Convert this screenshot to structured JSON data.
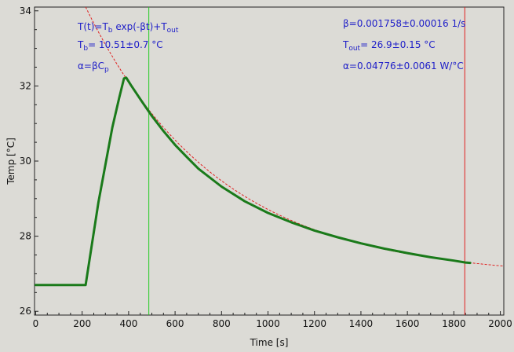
{
  "chart_data": {
    "type": "line",
    "xlabel": "Time [s]",
    "ylabel": "Temp [°C]",
    "xlim": [
      -5,
      2015
    ],
    "ylim": [
      25.9,
      34.1
    ],
    "x_ticks": [
      0,
      200,
      400,
      600,
      800,
      1000,
      1200,
      1400,
      1600,
      1800,
      2000
    ],
    "y_ticks": [
      26,
      28,
      30,
      32,
      34
    ],
    "grid": false,
    "colors": {
      "background": "#dcdbd6",
      "data": "#1a7a1a",
      "fit": "#e02020",
      "cursor_start": "#22cc22",
      "cursor_end": "#e02020",
      "annotation": "#2020c8"
    },
    "series": [
      {
        "style": "data",
        "points": [
          [
            0,
            26.7
          ],
          [
            100,
            26.7
          ],
          [
            210,
            26.7
          ],
          [
            215,
            26.7
          ],
          [
            240,
            27.7
          ],
          [
            270,
            28.9
          ],
          [
            300,
            29.9
          ],
          [
            330,
            30.9
          ],
          [
            360,
            31.7
          ],
          [
            380,
            32.2
          ],
          [
            390,
            32.22
          ],
          [
            410,
            32.02
          ],
          [
            450,
            31.65
          ],
          [
            500,
            31.2
          ],
          [
            550,
            30.8
          ],
          [
            600,
            30.43
          ],
          [
            650,
            30.11
          ],
          [
            700,
            29.8
          ],
          [
            800,
            29.32
          ],
          [
            900,
            28.93
          ],
          [
            1000,
            28.62
          ],
          [
            1100,
            28.37
          ],
          [
            1200,
            28.15
          ],
          [
            1300,
            27.97
          ],
          [
            1400,
            27.81
          ],
          [
            1500,
            27.67
          ],
          [
            1600,
            27.55
          ],
          [
            1700,
            27.44
          ],
          [
            1800,
            27.35
          ],
          [
            1850,
            27.3
          ],
          [
            1870,
            27.29
          ]
        ]
      },
      {
        "style": "fit",
        "model": {
          "Tb": 10.51,
          "beta": 0.001758,
          "Tout": 26.9
        },
        "x_range": [
          215,
          2015
        ]
      }
    ],
    "cursors": [
      {
        "x": 487,
        "color": "#22cc22"
      },
      {
        "x": 1847,
        "color": "#e02020"
      }
    ],
    "annotations": {
      "formula": {
        "pre": "T(t)=T",
        "s1": "b",
        "mid": " exp(-βt)+T",
        "s2": "out",
        "post": ""
      },
      "tb": {
        "pre": "T",
        "s1": "b",
        "post": "= 10.51±0.7 °C"
      },
      "alpha_def": {
        "pre": "α=βC",
        "s1": "p",
        "post": ""
      },
      "beta": {
        "text": "β=0.001758±0.00016 1/s"
      },
      "tout": {
        "pre": "T",
        "s1": "out",
        "post": "= 26.9±0.15 °C"
      },
      "alpha": {
        "text": "α=0.04776±0.0061 W/°C"
      }
    }
  }
}
